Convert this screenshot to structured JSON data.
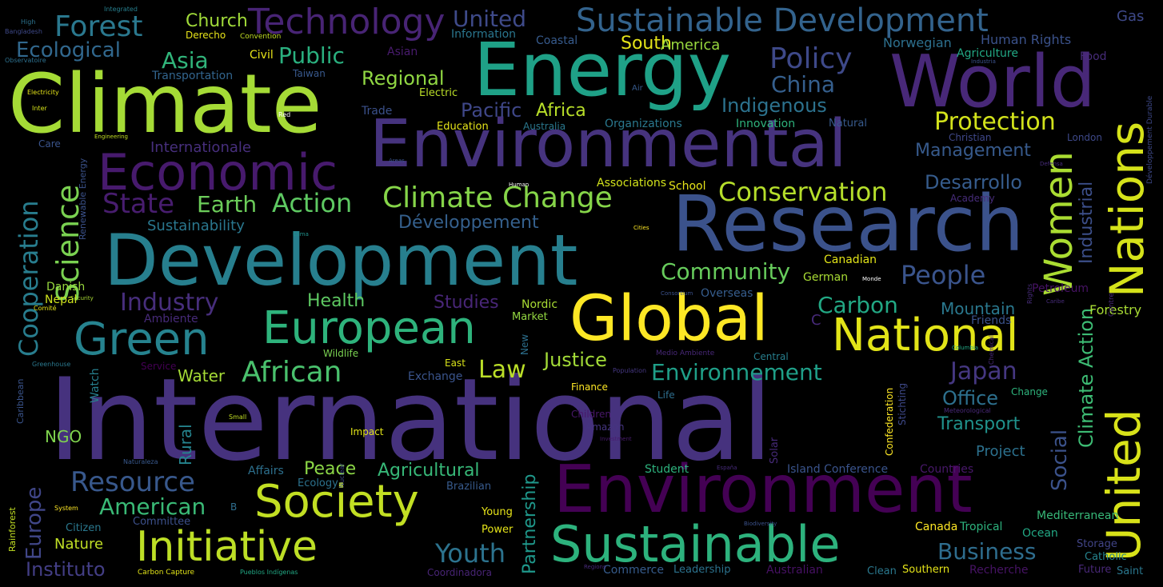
{
  "words": [
    {
      "text": "International",
      "color": "#46327e"
    },
    {
      "text": "Climate",
      "color": "#a5db36"
    },
    {
      "text": "Development",
      "color": "#277f8e"
    },
    {
      "text": "Environmental",
      "color": "#46337e"
    },
    {
      "text": "Research",
      "color": "#3b528b"
    },
    {
      "text": "Energy",
      "color": "#1fa187"
    },
    {
      "text": "Economic",
      "color": "#471a6d"
    },
    {
      "text": "World",
      "color": "#482878"
    },
    {
      "text": "Environment",
      "color": "#440154"
    },
    {
      "text": "Global",
      "color": "#fde725"
    },
    {
      "text": "Sustainable",
      "color": "#2db27d"
    },
    {
      "text": "Society",
      "color": "#c2df23"
    },
    {
      "text": "Initiative",
      "color": "#bddf26"
    },
    {
      "text": "European",
      "color": "#2eb37c"
    },
    {
      "text": "Green",
      "color": "#26838f"
    },
    {
      "text": "National",
      "color": "#e2e418"
    },
    {
      "text": "United",
      "color": "#d8e219"
    },
    {
      "text": "Nations",
      "color": "#d5e21a"
    },
    {
      "text": "Sustainable Development",
      "color": "#33638d"
    },
    {
      "text": "Technology",
      "color": "#482475"
    },
    {
      "text": "Forest",
      "color": "#2a788e"
    },
    {
      "text": "Women",
      "color": "#aadc32"
    },
    {
      "text": "Science",
      "color": "#7ad151"
    },
    {
      "text": "Cooperation",
      "color": "#287d8e"
    },
    {
      "text": "Climate Change",
      "color": "#86d549"
    },
    {
      "text": "Conservation",
      "color": "#b5de2b"
    },
    {
      "text": "Protection",
      "color": "#d2e21b"
    },
    {
      "text": "Policy",
      "color": "#3e4989"
    },
    {
      "text": "Action",
      "color": "#5ec962"
    },
    {
      "text": "Earth",
      "color": "#6ccd5a"
    },
    {
      "text": "State",
      "color": "#481d6f"
    },
    {
      "text": "Asia",
      "color": "#31b57b"
    },
    {
      "text": "Public",
      "color": "#2ab07f"
    },
    {
      "text": "Ecological",
      "color": "#31688e"
    },
    {
      "text": "United",
      "color": "#3e4a89"
    },
    {
      "text": "Church",
      "color": "#a0da39"
    },
    {
      "text": "China",
      "color": "#355f8d"
    },
    {
      "text": "Regional",
      "color": "#90d743"
    },
    {
      "text": "South",
      "color": "#e5e419"
    },
    {
      "text": "America",
      "color": "#98d83e"
    },
    {
      "text": "Pacific",
      "color": "#3f4788"
    },
    {
      "text": "Africa",
      "color": "#b8de29"
    },
    {
      "text": "Indigenous",
      "color": "#2c728e"
    },
    {
      "text": "Management",
      "color": "#375a8c"
    },
    {
      "text": "Desarrollo",
      "color": "#365c8d"
    },
    {
      "text": "Community",
      "color": "#67cc5c"
    },
    {
      "text": "People",
      "color": "#3a548c"
    },
    {
      "text": "Industry",
      "color": "#472e7c"
    },
    {
      "text": "Health",
      "color": "#5ec962"
    },
    {
      "text": "Carbon",
      "color": "#22a884"
    },
    {
      "text": "Mountain",
      "color": "#2a788e"
    },
    {
      "text": "Studies",
      "color": "#482677"
    },
    {
      "text": "Développement",
      "color": "#35608d"
    },
    {
      "text": "Sustainability",
      "color": "#2a778e"
    },
    {
      "text": "Industrial",
      "color": "#3c4f8a"
    },
    {
      "text": "Social",
      "color": "#3b528b"
    },
    {
      "text": "Climate Action",
      "color": "#3dbc74"
    },
    {
      "text": "African",
      "color": "#4ac16d"
    },
    {
      "text": "Law",
      "color": "#bade28"
    },
    {
      "text": "Justice",
      "color": "#a2da37"
    },
    {
      "text": "Environnement",
      "color": "#1f9f88"
    },
    {
      "text": "Japan",
      "color": "#453781"
    },
    {
      "text": "Office",
      "color": "#2d708e"
    },
    {
      "text": "Transport",
      "color": "#20928c"
    },
    {
      "text": "Project",
      "color": "#2c718e"
    },
    {
      "text": "Water",
      "color": "#a5db36"
    },
    {
      "text": "Resource",
      "color": "#38588c"
    },
    {
      "text": "American",
      "color": "#3aba76"
    },
    {
      "text": "Peace",
      "color": "#8bd646"
    },
    {
      "text": "Agricultural",
      "color": "#37b878"
    },
    {
      "text": "Europe",
      "color": "#404688"
    },
    {
      "text": "Partnership",
      "color": "#1f988b"
    },
    {
      "text": "Youth",
      "color": "#2c738e"
    },
    {
      "text": "Business",
      "color": "#2e6d8e"
    },
    {
      "text": "Nature",
      "color": "#c0df25"
    },
    {
      "text": "Instituto",
      "color": "#433e85"
    },
    {
      "text": "Rural",
      "color": "#25848e"
    },
    {
      "text": "NGO",
      "color": "#7fd34e"
    },
    {
      "text": "Internationale",
      "color": "#472f7d"
    },
    {
      "text": "Gas",
      "color": "#3e4989"
    },
    {
      "text": "Human Rights",
      "color": "#3b528b"
    },
    {
      "text": "Norwegian",
      "color": "#2d708e"
    },
    {
      "text": "Agriculture",
      "color": "#22a884"
    },
    {
      "text": "Food",
      "color": "#472c7a"
    },
    {
      "text": "Information",
      "color": "#2a768e"
    },
    {
      "text": "Coastal",
      "color": "#375b8d"
    },
    {
      "text": "Asian",
      "color": "#481b6d"
    },
    {
      "text": "Civil",
      "color": "#e7e419"
    },
    {
      "text": "Derecho",
      "color": "#e7e419"
    },
    {
      "text": "Convention",
      "color": "#c2df23"
    },
    {
      "text": "Transportation",
      "color": "#32658e"
    },
    {
      "text": "Taiwan",
      "color": "#38588c"
    },
    {
      "text": "Trade",
      "color": "#3b518b"
    },
    {
      "text": "Electric",
      "color": "#bade28"
    },
    {
      "text": "Education",
      "color": "#e5e419"
    },
    {
      "text": "Australia",
      "color": "#2a788e"
    },
    {
      "text": "Organizations",
      "color": "#2a788e"
    },
    {
      "text": "Innovation",
      "color": "#2eb37c"
    },
    {
      "text": "Natural",
      "color": "#375a8c"
    },
    {
      "text": "Christian",
      "color": "#3f4788"
    },
    {
      "text": "London",
      "color": "#3e4989"
    },
    {
      "text": "Associations",
      "color": "#d2e21b"
    },
    {
      "text": "School",
      "color": "#e7e419"
    },
    {
      "text": "Academy",
      "color": "#472c7a"
    },
    {
      "text": "Canadian",
      "color": "#e2e418"
    },
    {
      "text": "German",
      "color": "#a8db34"
    },
    {
      "text": "Petroleum",
      "color": "#471365"
    },
    {
      "text": "Forestry",
      "color": "#a8db34"
    },
    {
      "text": "Friends",
      "color": "#3b528b"
    },
    {
      "text": "Overseas",
      "color": "#365d8d"
    },
    {
      "text": "Nordic",
      "color": "#a8db34"
    },
    {
      "text": "Market",
      "color": "#93d741"
    },
    {
      "text": "Ambiente",
      "color": "#472a7a"
    },
    {
      "text": "Danish",
      "color": "#98d83e"
    },
    {
      "text": "Nepal",
      "color": "#cde11d"
    },
    {
      "text": "Wildlife",
      "color": "#7ad151"
    },
    {
      "text": "Service",
      "color": "#440154"
    },
    {
      "text": "Exchange",
      "color": "#3a548c"
    },
    {
      "text": "East",
      "color": "#d8e219"
    },
    {
      "text": "Finance",
      "color": "#fde725"
    },
    {
      "text": "Life",
      "color": "#2e6e8e"
    },
    {
      "text": "Children",
      "color": "#481769"
    },
    {
      "text": "Amazon",
      "color": "#453581"
    },
    {
      "text": "Impact",
      "color": "#e2e418"
    },
    {
      "text": "Student",
      "color": "#2db27d"
    },
    {
      "text": "Island Conference",
      "color": "#3a548c"
    },
    {
      "text": "Countries",
      "color": "#48186a"
    },
    {
      "text": "Change",
      "color": "#2eb37c"
    },
    {
      "text": "Affairs",
      "color": "#2d708e"
    },
    {
      "text": "Ecology",
      "color": "#2c728e"
    },
    {
      "text": "Brazilian",
      "color": "#375a8c"
    },
    {
      "text": "Committee",
      "color": "#3c508b"
    },
    {
      "text": "Citizen",
      "color": "#2a788e"
    },
    {
      "text": "Young",
      "color": "#e7e419"
    },
    {
      "text": "Power",
      "color": "#e5e419"
    },
    {
      "text": "Canada",
      "color": "#fde725"
    },
    {
      "text": "Tropical",
      "color": "#2db27d"
    },
    {
      "text": "Ocean",
      "color": "#22a884"
    },
    {
      "text": "Mediterranean",
      "color": "#37b878"
    },
    {
      "text": "Storage",
      "color": "#414487"
    },
    {
      "text": "Catholic",
      "color": "#25838e"
    },
    {
      "text": "Saint",
      "color": "#2a778e"
    },
    {
      "text": "Commerce",
      "color": "#365c8d"
    },
    {
      "text": "Leadership",
      "color": "#2c728e"
    },
    {
      "text": "Australian",
      "color": "#471164"
    },
    {
      "text": "Clean",
      "color": "#2a788e"
    },
    {
      "text": "Southern",
      "color": "#e5e419"
    },
    {
      "text": "Recherche",
      "color": "#471365"
    },
    {
      "text": "Future",
      "color": "#482878"
    },
    {
      "text": "Coordinadora",
      "color": "#482475"
    },
    {
      "text": "Central",
      "color": "#277f8e"
    },
    {
      "text": "Medio Ambiente",
      "color": "#482878"
    },
    {
      "text": "Meteorological",
      "color": "#482878"
    },
    {
      "text": "Population",
      "color": "#453781"
    },
    {
      "text": "Investment",
      "color": "#481b6d"
    },
    {
      "text": "Biodiversity",
      "color": "#3b518b"
    },
    {
      "text": "Regions",
      "color": "#472a7a"
    },
    {
      "text": "Pueblos Indígenas",
      "color": "#22a884"
    },
    {
      "text": "Carbon Capture",
      "color": "#e2e418"
    },
    {
      "text": "B",
      "color": "#2e6e8e"
    },
    {
      "text": "System",
      "color": "#fde725"
    },
    {
      "text": "Small",
      "color": "#c2df23"
    },
    {
      "text": "Naturaleza",
      "color": "#38588c"
    },
    {
      "text": "Greenhouse",
      "color": "#2a788e"
    },
    {
      "text": "Watch",
      "color": "#277f8e"
    },
    {
      "text": "Comité",
      "color": "#e5e419"
    },
    {
      "text": "Security",
      "color": "#a8db34"
    },
    {
      "text": "Consortium",
      "color": "#3b518b"
    },
    {
      "text": "Monde",
      "color": "#ffffff"
    },
    {
      "text": "Columbia",
      "color": "#22a884"
    },
    {
      "text": "Caribe",
      "color": "#472c7a"
    },
    {
      "text": "España",
      "color": "#472a7a"
    },
    {
      "text": "Cities",
      "color": "#fde725"
    },
    {
      "text": "Clima",
      "color": "#20928c"
    },
    {
      "text": "Human",
      "color": "#ffffff"
    },
    {
      "text": "Areas",
      "color": "#3b528b"
    },
    {
      "text": "Defensa",
      "color": "#472c7a"
    },
    {
      "text": "Industria",
      "color": "#3b528b"
    },
    {
      "text": "Air",
      "color": "#375a8c"
    },
    {
      "text": "Red",
      "color": "#ffffff"
    },
    {
      "text": "Inter",
      "color": "#d5e21a"
    },
    {
      "text": "Electricity",
      "color": "#e5e419"
    },
    {
      "text": "Care",
      "color": "#3a548c"
    },
    {
      "text": "Engineering",
      "color": "#c2df23"
    },
    {
      "text": "High",
      "color": "#2c728e"
    },
    {
      "text": "Bangladesh",
      "color": "#3e4989"
    },
    {
      "text": "Observatoire",
      "color": "#2d708e"
    },
    {
      "text": "Integrated",
      "color": "#277f8e"
    },
    {
      "text": "Renewable Energy",
      "color": "#3b528b"
    },
    {
      "text": "Caribbean",
      "color": "#3a548c"
    },
    {
      "text": "Rainforest",
      "color": "#c2df23"
    },
    {
      "text": "Confederation",
      "color": "#fde725"
    },
    {
      "text": "Stichting",
      "color": "#3e4989"
    },
    {
      "text": "Solar",
      "color": "#472a7a"
    },
    {
      "text": "New",
      "color": "#2d708e"
    },
    {
      "text": "Nuclear",
      "color": "#3e4989"
    },
    {
      "text": "Chemical",
      "color": "#482878"
    },
    {
      "text": "Rights",
      "color": "#472c7a"
    },
    {
      "text": "Développement Durable",
      "color": "#3e4989"
    },
    {
      "text": "C",
      "color": "#472a7a"
    },
    {
      "text": "Centre",
      "color": "#482878"
    }
  ]
}
